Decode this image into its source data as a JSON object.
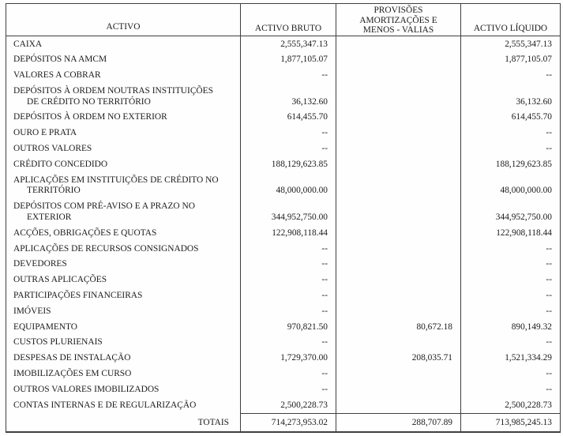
{
  "document": {
    "header": {
      "col_activo": "ACTIVO",
      "col_bruto": "ACTIVO BRUTO",
      "col_provisoes": "PROVISÕES\nAMORTIZAÇÕES E\nMENOS - VALIAS",
      "col_liquido": "ACTIVO LÍQUIDO"
    },
    "empty_marker": "--",
    "rows": [
      {
        "l1": "CAIXA",
        "b": "2,555,347.13",
        "p": "",
        "n": "2,555,347.13"
      },
      {
        "l1": "DEPÓSITOS NA AMCM",
        "b": "1,877,105.07",
        "p": "",
        "n": "1,877,105.07"
      },
      {
        "l1": "VALORES A COBRAR",
        "b": "--",
        "p": "",
        "n": "--"
      },
      {
        "l1": "DEPÓSITOS À ORDEM NOUTRAS INSTITUIÇÕES",
        "l2": "DE CRÉDITO NO TERRITÓRIO",
        "b": "36,132.60",
        "p": "",
        "n": "36,132.60"
      },
      {
        "l1": "DEPÓSITOS À ORDEM NO EXTERIOR",
        "b": "614,455.70",
        "p": "",
        "n": "614,455.70"
      },
      {
        "l1": "OURO E PRATA",
        "b": "--",
        "p": "",
        "n": "--"
      },
      {
        "l1": "OUTROS VALORES",
        "b": "--",
        "p": "",
        "n": "--"
      },
      {
        "l1": "CRÉDITO CONCEDIDO",
        "b": "188,129,623.85",
        "p": "",
        "n": "188,129,623.85"
      },
      {
        "l1": "APLICAÇÕES EM INSTITUIÇÕES DE CRÉDITO NO",
        "l2": "TERRITÓRIO",
        "b": "48,000,000.00",
        "p": "",
        "n": "48,000,000.00"
      },
      {
        "l1": "DEPÓSITOS COM PRÉ-AVISO E A PRAZO NO",
        "l2": "EXTERIOR",
        "b": "344,952,750.00",
        "p": "",
        "n": "344,952,750.00"
      },
      {
        "l1": "ACÇÕES, OBRIGAÇÕES E QUOTAS",
        "b": "122,908,118.44",
        "p": "",
        "n": "122,908,118.44"
      },
      {
        "l1": "APLICAÇÕES DE RECURSOS CONSIGNADOS",
        "b": "--",
        "p": "",
        "n": "--"
      },
      {
        "l1": "DEVEDORES",
        "b": "--",
        "p": "",
        "n": "--"
      },
      {
        "l1": "OUTRAS APLICAÇÕES",
        "b": "--",
        "p": "",
        "n": "--"
      },
      {
        "l1": "PARTICIPAÇÕES FINANCEIRAS",
        "b": "--",
        "p": "",
        "n": "--"
      },
      {
        "l1": "IMÓVEIS",
        "b": "--",
        "p": "",
        "n": "--"
      },
      {
        "l1": "EQUIPAMENTO",
        "b": "970,821.50",
        "p": "80,672.18",
        "n": "890,149.32"
      },
      {
        "l1": "CUSTOS PLURIENAIS",
        "b": "--",
        "p": "",
        "n": "--"
      },
      {
        "l1": "DESPESAS DE INSTALAÇÃO",
        "b": "1,729,370.00",
        "p": "208,035.71",
        "n": "1,521,334.29"
      },
      {
        "l1": "IMOBILIZAÇÕES EM CURSO",
        "b": "--",
        "p": "",
        "n": "--"
      },
      {
        "l1": "OUTROS VALORES IMOBILIZADOS",
        "b": "--",
        "p": "",
        "n": "--"
      },
      {
        "l1": "CONTAS INTERNAS E DE REGULARIZAÇÃO",
        "b": "2,500,228.73",
        "p": "",
        "n": "2,500,228.73"
      }
    ],
    "totals": {
      "label": "TOTAIS",
      "b": "714,273,953.02",
      "p": "288,707.89",
      "n": "713,985,245.13"
    }
  }
}
